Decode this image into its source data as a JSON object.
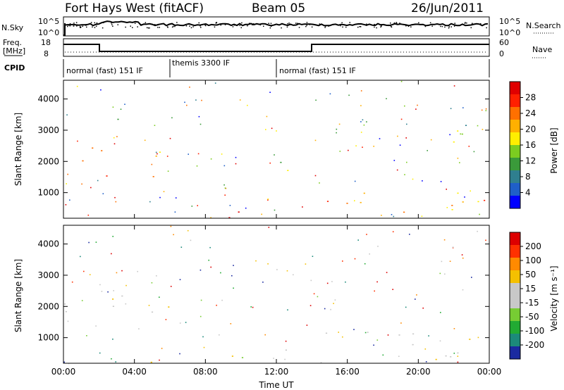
{
  "header": {
    "title": "Fort Hays West (fitACF)",
    "beam": "Beam 05",
    "date": "26/Jun/2011"
  },
  "status_panels": {
    "nsky_label": "N.Sky",
    "nsky_ticks": [
      "10^5",
      "10^0"
    ],
    "nsearch_label": "N.Search",
    "nsearch_ticks": [
      "10^5",
      "10^0"
    ],
    "freq_label_line1": "Freq.",
    "freq_label_line2": "[MHz]",
    "freq_ticks": [
      "18",
      "8"
    ],
    "nave_label": "Nave",
    "nave_ticks": [
      "60",
      "0"
    ],
    "cpid_label": "CPID",
    "cpid_segments": [
      {
        "label": "normal (fast) 151 IF",
        "start_hour": 0,
        "end_hour": 6
      },
      {
        "label": "themis 3300 IF",
        "start_hour": 6,
        "end_hour": 12
      },
      {
        "label": "normal (fast) 151 IF",
        "start_hour": 12,
        "end_hour": 24
      }
    ]
  },
  "chart_data": [
    {
      "type": "heatmap",
      "title": "Power",
      "xlabel": "Time UT",
      "ylabel": "Slant Range [km]",
      "x_range_hours": [
        0,
        24
      ],
      "ylim": [
        180,
        4600
      ],
      "x_tick_labels": [
        "00:00",
        "04:00",
        "08:00",
        "12:00",
        "16:00",
        "20:00",
        "00:00"
      ],
      "y_tick_values": [
        1000,
        2000,
        3000,
        4000
      ],
      "y_tick_labels": [
        "1000",
        "2000",
        "3000",
        "4000"
      ],
      "colorbar": {
        "label": "Power [dB]",
        "ticks": [
          "4",
          "8",
          "12",
          "16",
          "20",
          "24",
          "28"
        ],
        "colors": [
          "#0000ff",
          "#1f5fc8",
          "#2f7f8f",
          "#3a9a3a",
          "#7ccc20",
          "#ffee00",
          "#ffb000",
          "#ff7000",
          "#ff2000",
          "#e00000"
        ]
      },
      "scatter_regions": [
        {
          "t0": 0.0,
          "t1": 1.6,
          "r0": 1700,
          "r1": 2800,
          "power": 18
        },
        {
          "t0": 1.3,
          "t1": 6.0,
          "r0": 1300,
          "r1": 2500,
          "power": 20
        },
        {
          "t0": 2.0,
          "t1": 4.2,
          "r0": 3000,
          "r1": 3500,
          "power": 10
        },
        {
          "t0": 9.0,
          "t1": 12.0,
          "r0": 250,
          "r1": 650,
          "power": 22
        },
        {
          "t0": 12.2,
          "t1": 24.0,
          "r0": 300,
          "r1": 1300,
          "power": 20
        },
        {
          "t0": 12.2,
          "t1": 13.8,
          "r0": 1500,
          "r1": 3200,
          "power": 12
        },
        {
          "t0": 20.5,
          "t1": 24.0,
          "r0": 2400,
          "r1": 3500,
          "power": 12
        },
        {
          "t0": 4.0,
          "t1": 12.0,
          "r0": 180,
          "r1": 300,
          "power": 26
        }
      ]
    },
    {
      "type": "heatmap",
      "title": "Velocity",
      "xlabel": "Time UT",
      "ylabel": "Slant Range [km]",
      "x_range_hours": [
        0,
        24
      ],
      "ylim": [
        180,
        4600
      ],
      "x_tick_labels": [
        "00:00",
        "04:00",
        "08:00",
        "12:00",
        "16:00",
        "20:00",
        "00:00"
      ],
      "y_tick_values": [
        1000,
        2000,
        3000,
        4000
      ],
      "y_tick_labels": [
        "1000",
        "2000",
        "3000",
        "4000"
      ],
      "colorbar": {
        "label": "Velocity [m s⁻¹]",
        "ticks": [
          "200",
          "100",
          "50",
          "15",
          "-15",
          "-50",
          "-100",
          "-200"
        ],
        "colors": [
          "#1a2aa0",
          "#1c8a7a",
          "#22aa33",
          "#77cc33",
          "#c8c8c8",
          "#c8c8c8",
          "#f5c000",
          "#ff8a00",
          "#ff3000",
          "#dd0000"
        ]
      },
      "scatter_regions": [
        {
          "t0": 0.0,
          "t1": 1.6,
          "r0": 1700,
          "r1": 2800,
          "velocity": 0
        },
        {
          "t0": 1.3,
          "t1": 6.0,
          "r0": 1300,
          "r1": 2500,
          "velocity": 0
        },
        {
          "t0": 12.2,
          "t1": 24.0,
          "r0": 300,
          "r1": 1300,
          "velocity": 0
        },
        {
          "t0": 4.0,
          "t1": 9.5,
          "r0": 180,
          "r1": 500,
          "velocity": -50
        },
        {
          "t0": 9.0,
          "t1": 12.0,
          "r0": 180,
          "r1": 400,
          "velocity": 50
        }
      ]
    }
  ]
}
